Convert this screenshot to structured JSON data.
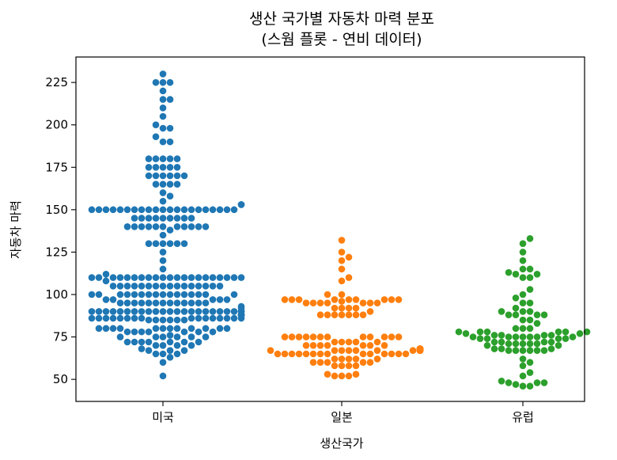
{
  "chart_data": {
    "type": "scatter",
    "subtype": "swarm",
    "title_line1": "생산 국가별 자동차 마력 분포",
    "title_line2": "(스웜 플롯 - 연비 데이터)",
    "xlabel": "생산국가",
    "ylabel": "자동차 마력",
    "categories": [
      "미국",
      "일본",
      "유럽"
    ],
    "colors": [
      "#1f77b4",
      "#ff7f0e",
      "#2ca02c"
    ],
    "ylim": [
      37,
      240
    ],
    "yticks": [
      50,
      75,
      100,
      125,
      150,
      175,
      200,
      225
    ],
    "grid": false,
    "legend": "none",
    "series": [
      {
        "name": "미국",
        "values": [
          230,
          225,
          225,
          225,
          220,
          215,
          215,
          210,
          205,
          200,
          198,
          198,
          193,
          190,
          190,
          180,
          180,
          180,
          180,
          180,
          175,
          175,
          175,
          175,
          175,
          170,
          170,
          170,
          170,
          170,
          170,
          165,
          165,
          165,
          165,
          160,
          158,
          155,
          153,
          153,
          150,
          150,
          150,
          150,
          150,
          150,
          150,
          150,
          150,
          150,
          150,
          150,
          150,
          150,
          150,
          150,
          150,
          150,
          150,
          150,
          150,
          145,
          145,
          145,
          145,
          145,
          145,
          145,
          145,
          145,
          140,
          140,
          140,
          140,
          140,
          140,
          140,
          140,
          140,
          140,
          140,
          138,
          135,
          130,
          130,
          130,
          130,
          130,
          130,
          125,
          120,
          115,
          112,
          110,
          110,
          110,
          110,
          110,
          110,
          110,
          110,
          110,
          110,
          110,
          110,
          110,
          110,
          110,
          110,
          110,
          110,
          110,
          110,
          110,
          108,
          105,
          105,
          105,
          105,
          105,
          105,
          105,
          105,
          105,
          105,
          105,
          105,
          105,
          105,
          105,
          105,
          100,
          100,
          100,
          100,
          100,
          100,
          100,
          100,
          100,
          100,
          100,
          100,
          100,
          100,
          100,
          100,
          97,
          97,
          97,
          97,
          97,
          95,
          95,
          95,
          95,
          95,
          95,
          95,
          95,
          95,
          95,
          95,
          95,
          95,
          93,
          92,
          90,
          90,
          90,
          90,
          90,
          90,
          90,
          90,
          90,
          90,
          90,
          90,
          90,
          90,
          90,
          90,
          90,
          90,
          90,
          90,
          90,
          90,
          90,
          90,
          88,
          88,
          88,
          88,
          88,
          88,
          88,
          88,
          88,
          88,
          88,
          86,
          86,
          86,
          86,
          86,
          86,
          86,
          86,
          86,
          86,
          86,
          86,
          86,
          86,
          86,
          86,
          85,
          85,
          85,
          85,
          85,
          85,
          80,
          80,
          80,
          80,
          80,
          80,
          80,
          80,
          80,
          80,
          80,
          80,
          78,
          78,
          78,
          78,
          78,
          78,
          78,
          76,
          75,
          75,
          75,
          75,
          75,
          75,
          72,
          72,
          72,
          72,
          72,
          72,
          72,
          70,
          70,
          70,
          70,
          68,
          67,
          67,
          67,
          65,
          65,
          65,
          63,
          60,
          52
        ]
      },
      {
        "name": "일본",
        "values": [
          132,
          125,
          122,
          120,
          115,
          110,
          108,
          100,
          100,
          97,
          97,
          97,
          97,
          97,
          97,
          97,
          97,
          97,
          96,
          95,
          95,
          95,
          95,
          95,
          95,
          95,
          92,
          92,
          92,
          92,
          90,
          88,
          88,
          88,
          88,
          88,
          88,
          88,
          75,
          75,
          75,
          75,
          75,
          75,
          75,
          75,
          75,
          75,
          75,
          75,
          72,
          72,
          72,
          72,
          72,
          70,
          70,
          70,
          70,
          70,
          70,
          70,
          68,
          68,
          68,
          68,
          68,
          68,
          68,
          68,
          68,
          68,
          68,
          68,
          68,
          68,
          68,
          68,
          68,
          68,
          68,
          67,
          67,
          67,
          67,
          67,
          67,
          67,
          67,
          67,
          67,
          67,
          67,
          67,
          67,
          67,
          67,
          67,
          65,
          65,
          65,
          65,
          65,
          65,
          65,
          65,
          65,
          65,
          65,
          65,
          65,
          65,
          62,
          62,
          62,
          62,
          62,
          60,
          60,
          60,
          60,
          60,
          58,
          58,
          58,
          58,
          53,
          53,
          52,
          52,
          52
        ]
      },
      {
        "name": "유럽",
        "values": [
          133,
          130,
          125,
          120,
          115,
          115,
          113,
          112,
          112,
          110,
          110,
          103,
          100,
          98,
          95,
          95,
          92,
          90,
          90,
          90,
          88,
          88,
          88,
          88,
          85,
          85,
          83,
          80,
          80,
          80,
          78,
          78,
          78,
          78,
          78,
          78,
          77,
          77,
          76,
          76,
          76,
          76,
          75,
          75,
          75,
          75,
          75,
          75,
          75,
          74,
          74,
          74,
          74,
          72,
          72,
          72,
          72,
          71,
          71,
          71,
          71,
          71,
          70,
          70,
          68,
          68,
          68,
          67,
          67,
          67,
          67,
          67,
          67,
          62,
          60,
          58,
          54,
          52,
          49,
          48,
          48,
          48,
          47,
          46,
          46
        ]
      }
    ]
  }
}
